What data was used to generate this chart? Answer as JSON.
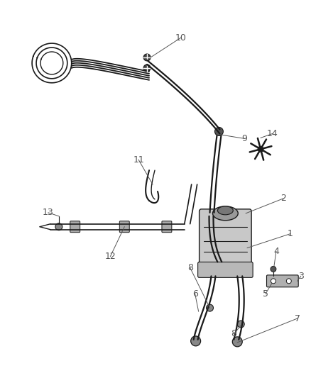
{
  "background": "#ffffff",
  "line_color": "#1a1a1a",
  "label_color": "#555555",
  "figsize": [
    4.38,
    5.33
  ],
  "dpi": 100
}
